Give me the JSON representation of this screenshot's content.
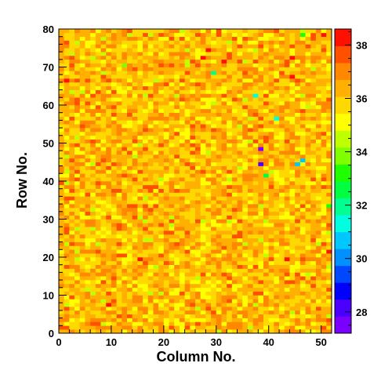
{
  "chart_data": {
    "type": "heatmap",
    "title": "",
    "xlabel": "Column No.",
    "ylabel": "Row No.",
    "xlim": [
      0,
      52
    ],
    "ylim": [
      0,
      80
    ],
    "x_ticks": [
      "0",
      "10",
      "20",
      "30",
      "40",
      "50"
    ],
    "y_ticks": [
      "0",
      "10",
      "20",
      "30",
      "40",
      "50",
      "60",
      "70",
      "80"
    ],
    "n_columns": 52,
    "n_rows": 80,
    "colorbar": {
      "zlim": [
        27.2,
        38.6
      ],
      "ticks": [
        "28",
        "30",
        "32",
        "34",
        "36",
        "38"
      ],
      "palette": [
        "#7a00ff",
        "#4b00ff",
        "#0000ff",
        "#0048ff",
        "#0090ff",
        "#00c8ff",
        "#00ffe0",
        "#00ff90",
        "#00ff40",
        "#20ff00",
        "#80ff00",
        "#c0ff00",
        "#ffff00",
        "#ffd800",
        "#ffb000",
        "#ff8800",
        "#ff5000",
        "#ff1000"
      ]
    },
    "typical_value": 36.2,
    "outliers": [
      {
        "column": 38,
        "row": 48,
        "value": 27.8
      },
      {
        "column": 38,
        "row": 44,
        "value": 28.2
      },
      {
        "column": 45,
        "row": 44,
        "value": 30.5
      },
      {
        "column": 41,
        "row": 56,
        "value": 31.0
      },
      {
        "column": 37,
        "row": 62,
        "value": 31.5
      },
      {
        "column": 29,
        "row": 68,
        "value": 31.8
      },
      {
        "column": 46,
        "row": 45,
        "value": 30.8
      },
      {
        "column": 39,
        "row": 41,
        "value": 32.5
      },
      {
        "column": 51,
        "row": 33,
        "value": 33.5
      },
      {
        "column": 12,
        "row": 70,
        "value": 33.8
      },
      {
        "column": 46,
        "row": 78,
        "value": 33.0
      }
    ]
  }
}
